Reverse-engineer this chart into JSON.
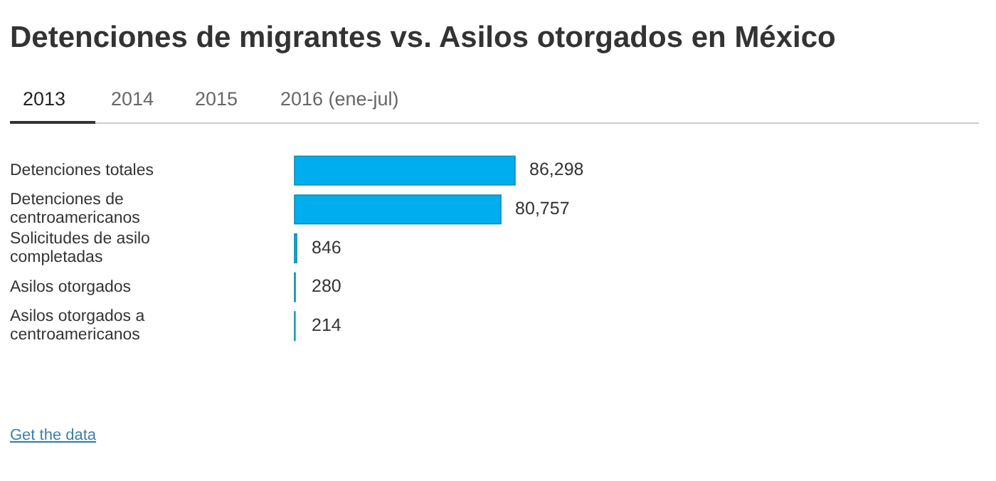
{
  "chart_data": {
    "type": "bar",
    "orientation": "horizontal",
    "title": "Detenciones de migrantes vs. Asilos otorgados en México",
    "categories": [
      "Detenciones totales",
      "Detenciones de centroamericanos",
      "Solicitudes de asilo completadas",
      "Asilos otorgados",
      "Asilos otorgados a centroamericanos"
    ],
    "values": [
      86298,
      80757,
      846,
      280,
      214
    ],
    "value_labels": [
      "86,298",
      "80,757",
      "846",
      "280",
      "214"
    ],
    "color": "#00aeef",
    "annotations": [
      "2013",
      "2014",
      "2015",
      "2016 (ene-jul)",
      "Get the data"
    ]
  }
}
